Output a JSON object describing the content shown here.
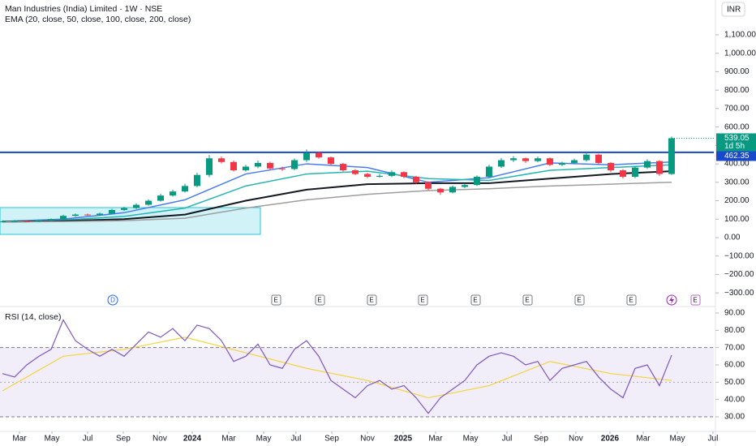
{
  "chart_data": [
    {
      "type": "candlestick",
      "title": "Man Industries (India) Limited · 1W · NSE",
      "subtitle": "EMA (20, close, 50, close, 100, close, 200, close)",
      "currency": "INR",
      "open": [
        85,
        88,
        90,
        87,
        92,
        100,
        118,
        125,
        122,
        130,
        150,
        160,
        178,
        200,
        228,
        250,
        280,
        340,
        430,
        410,
        365,
        385,
        405,
        375,
        372,
        420,
        460,
        435,
        400,
        365,
        345,
        330,
        335,
        355,
        330,
        300,
        265,
        245,
        275,
        285,
        330,
        385,
        420,
        430,
        415,
        430,
        395,
        405,
        420,
        450,
        405,
        365,
        330,
        380,
        415,
        345
      ],
      "high": [
        93,
        95,
        94,
        96,
        104,
        124,
        131,
        130,
        136,
        156,
        167,
        186,
        208,
        238,
        260,
        292,
        352,
        448,
        440,
        418,
        395,
        418,
        412,
        385,
        430,
        478,
        465,
        440,
        405,
        372,
        352,
        345,
        365,
        360,
        335,
        305,
        270,
        282,
        292,
        338,
        395,
        432,
        442,
        435,
        440,
        435,
        412,
        428,
        462,
        455,
        410,
        372,
        388,
        425,
        420,
        548
      ],
      "low": [
        82,
        84,
        84,
        84,
        89,
        96,
        113,
        118,
        118,
        126,
        145,
        155,
        173,
        195,
        222,
        244,
        272,
        328,
        402,
        358,
        358,
        376,
        368,
        362,
        365,
        410,
        428,
        392,
        358,
        338,
        322,
        325,
        328,
        322,
        292,
        255,
        232,
        240,
        268,
        280,
        322,
        378,
        410,
        405,
        408,
        388,
        388,
        398,
        412,
        398,
        355,
        320,
        322,
        372,
        335,
        340
      ],
      "close": [
        88,
        90,
        87,
        92,
        100,
        118,
        125,
        122,
        130,
        150,
        160,
        178,
        200,
        228,
        250,
        280,
        340,
        430,
        410,
        365,
        385,
        405,
        375,
        372,
        420,
        460,
        435,
        400,
        365,
        345,
        330,
        335,
        355,
        330,
        300,
        265,
        245,
        275,
        285,
        330,
        385,
        420,
        430,
        415,
        430,
        395,
        405,
        420,
        450,
        405,
        365,
        330,
        380,
        415,
        345,
        539.05
      ],
      "up_color": "#089981",
      "down_color": "#f23645",
      "countdown": "1d 5h",
      "overlays": [
        {
          "color": "#4a7cf0",
          "x": [
            0,
            5,
            10,
            15,
            20,
            25,
            30,
            35,
            40,
            45,
            50,
            55
          ],
          "values": [
            88,
            100,
            135,
            205,
            345,
            400,
            380,
            300,
            325,
            405,
            395,
            410
          ]
        },
        {
          "color": "#26b5b0",
          "x": [
            0,
            5,
            10,
            15,
            20,
            25,
            30,
            35,
            40,
            45,
            50,
            55
          ],
          "values": [
            88,
            95,
            115,
            160,
            280,
            345,
            360,
            320,
            310,
            365,
            380,
            395
          ]
        },
        {
          "color": "#131722",
          "x": [
            0,
            5,
            10,
            15,
            20,
            25,
            30,
            35,
            40,
            45,
            50,
            55
          ],
          "values": [
            86,
            90,
            100,
            125,
            200,
            260,
            290,
            295,
            295,
            320,
            345,
            360
          ]
        },
        {
          "color": "#9e9e9e",
          "x": [
            0,
            5,
            10,
            15,
            20,
            25,
            30,
            35,
            40,
            45,
            50,
            55
          ],
          "values": [
            85,
            87,
            92,
            105,
            160,
            205,
            235,
            255,
            265,
            280,
            290,
            300
          ]
        }
      ],
      "hline": {
        "value": 462.35,
        "color": "#1848cc"
      },
      "ylim": [
        -374,
        1289
      ],
      "yticks": [
        {
          "value": 1100,
          "label": "1,100.00"
        },
        {
          "value": 1000,
          "label": "1,000.00"
        },
        {
          "value": 900,
          "label": "900.00"
        },
        {
          "value": 800,
          "label": "800.00"
        },
        {
          "value": 700,
          "label": "700.00"
        },
        {
          "value": 600,
          "label": "600.00"
        },
        {
          "value": 500,
          "label": "500.00"
        },
        {
          "value": 400,
          "label": "400.00"
        },
        {
          "value": 300,
          "label": "300.00"
        },
        {
          "value": 200,
          "label": "200.00"
        },
        {
          "value": 100,
          "label": "100.00"
        },
        {
          "value": 0,
          "label": "0.00"
        },
        {
          "value": -100,
          "label": "−100.00"
        },
        {
          "value": -200,
          "label": "−200.00"
        },
        {
          "value": -300,
          "label": "−300.00"
        }
      ],
      "xlim": [
        -0.2,
        58.47
      ],
      "xticks": [
        {
          "value": 1.4,
          "label": "Mar"
        },
        {
          "value": 4.07,
          "label": "May"
        },
        {
          "value": 7.0,
          "label": "Jul"
        },
        {
          "value": 9.93,
          "label": "Sep"
        },
        {
          "value": 12.93,
          "label": "Nov"
        },
        {
          "value": 15.6,
          "label": "2024"
        },
        {
          "value": 18.6,
          "label": "Mar"
        },
        {
          "value": 21.47,
          "label": "May"
        },
        {
          "value": 24.13,
          "label": "Jul"
        },
        {
          "value": 27.07,
          "label": "Sep"
        },
        {
          "value": 30.0,
          "label": "Nov"
        },
        {
          "value": 32.93,
          "label": "2025"
        },
        {
          "value": 35.6,
          "label": "Mar"
        },
        {
          "value": 38.47,
          "label": "May"
        },
        {
          "value": 41.47,
          "label": "Jul"
        },
        {
          "value": 44.27,
          "label": "Sep"
        },
        {
          "value": 47.13,
          "label": "Nov"
        },
        {
          "value": 49.93,
          "label": "2026"
        },
        {
          "value": 52.67,
          "label": "Mar"
        },
        {
          "value": 55.47,
          "label": "May"
        },
        {
          "value": 58.4,
          "label": "Jul"
        }
      ],
      "events": [
        "D",
        "E",
        "E",
        "E",
        "E",
        "E",
        "E",
        "E",
        "E",
        "E"
      ]
    },
    {
      "type": "line",
      "title": "RSI (14, close)",
      "color": "#7e57c2",
      "values": [
        55,
        53,
        60,
        65,
        69,
        86,
        74,
        69,
        65,
        69,
        65,
        72,
        79,
        76,
        81,
        74,
        83,
        81,
        74,
        62,
        65,
        72,
        60,
        58,
        69,
        74,
        65,
        51,
        46,
        41,
        48,
        51,
        46,
        48,
        41,
        32,
        41,
        46,
        51,
        60,
        65,
        67,
        65,
        60,
        62,
        51,
        58,
        60,
        62,
        53,
        46,
        41,
        58,
        60,
        48,
        65.6
      ],
      "overlays": [
        {
          "color": "#f5d33a",
          "x": [
            0,
            5,
            10,
            15,
            20,
            25,
            30,
            35,
            40,
            45,
            50,
            55
          ],
          "values": [
            45,
            65,
            69,
            76,
            67,
            58,
            51,
            41,
            48,
            62,
            55,
            51
          ]
        }
      ],
      "band": [
        30,
        70
      ],
      "midline": 50,
      "ylim": [
        21.56,
        93.28
      ],
      "yticks": [
        {
          "value": 90,
          "label": "90.00"
        },
        {
          "value": 80,
          "label": "80.00"
        },
        {
          "value": 70,
          "label": "70.00"
        },
        {
          "value": 60,
          "label": "60.00"
        },
        {
          "value": 50,
          "label": "50.00"
        },
        {
          "value": 40,
          "label": "40.00"
        },
        {
          "value": 30,
          "label": "30.00"
        }
      ],
      "xlim": [
        -0.2,
        58.47
      ]
    }
  ]
}
